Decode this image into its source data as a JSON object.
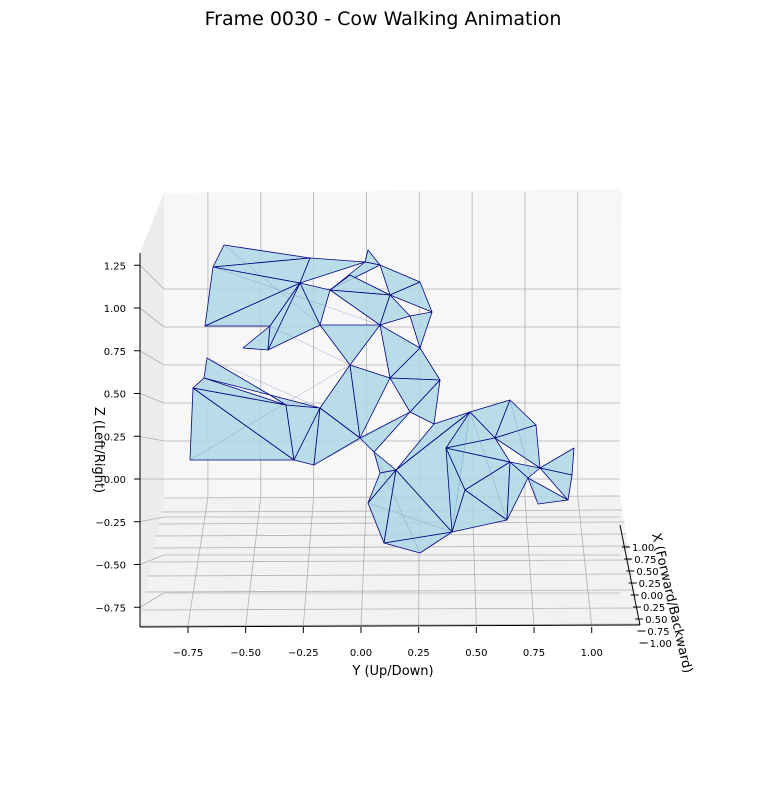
{
  "chart_data": {
    "type": "mesh3d",
    "title": "Frame 0030 - Cow Walking Animation",
    "xlabel": "Y (Up/Down)",
    "ylabel": "Z (Left/Right)",
    "zlabel": "X (Forward/Backward)",
    "x_ticks": [
      "−0.75",
      "−0.50",
      "−0.25",
      "0.00",
      "0.25",
      "0.50",
      "0.75",
      "1.00"
    ],
    "x_tick_values": [
      -0.75,
      -0.5,
      -0.25,
      0,
      0.25,
      0.5,
      0.75,
      1.0
    ],
    "y_ticks": [
      "−0.75",
      "−0.50",
      "−0.25",
      "0.00",
      "0.25",
      "0.50",
      "0.75",
      "1.00",
      "1.25"
    ],
    "y_tick_values": [
      -0.75,
      -0.5,
      -0.25,
      0,
      0.25,
      0.5,
      0.75,
      1.0,
      1.25
    ],
    "z_ticks": [
      "1.00",
      "0.75",
      "0.50",
      "0.25",
      "0.00",
      "0.25",
      "0.50",
      "0.75",
      "1.00"
    ],
    "grid": true,
    "mesh_color": "#add8e6",
    "edge_color": "#000080",
    "pane_color": "#f7f7f7",
    "grid_color": "#b0b0b0"
  }
}
